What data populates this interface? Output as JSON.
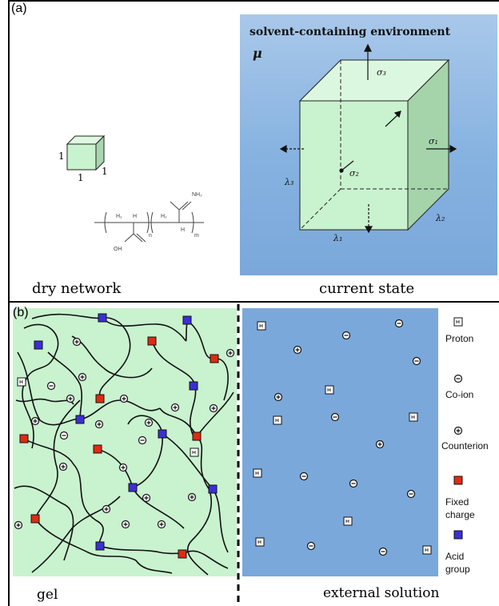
{
  "panel_a": {
    "label": "(a)",
    "env_title": "solvent-containing environment",
    "mu": "μ",
    "dry_caption": "dry network",
    "current_caption": "current state",
    "dry_dims": [
      "1",
      "1",
      "1"
    ],
    "polymer_labels": {
      "amide": "NH₂",
      "acid": "OH",
      "h2_left": "H₂",
      "h_left": "H",
      "h2_right": "H₂",
      "h_right": "H",
      "n": "n",
      "m": "m"
    },
    "sigma": [
      "σ₃",
      "σ₁",
      "σ₂"
    ],
    "lambda": [
      "λ₃",
      "λ₁",
      "λ₂"
    ]
  },
  "panel_b": {
    "label": "(b)",
    "gel_caption": "gel",
    "solution_caption": "external solution"
  },
  "legend": {
    "proton": "Proton",
    "coion": "Co-ion",
    "counterion": "Counterion",
    "fixed_charge": [
      "Fixed",
      "charge"
    ],
    "acid_group": [
      "Acid",
      "group"
    ]
  },
  "colors": {
    "env_blue": "#86b2e0",
    "cube_green": "#c9f2cf",
    "gel_green": "#c9f2cf",
    "solution_blue": "#7aa8db",
    "fixed_charge_red": "#e02a12",
    "acid_group_blue": "#3a2fd6"
  },
  "icons": [
    "proton-icon",
    "coion-icon",
    "counterion-icon",
    "fixed-charge-icon",
    "acid-group-icon"
  ]
}
